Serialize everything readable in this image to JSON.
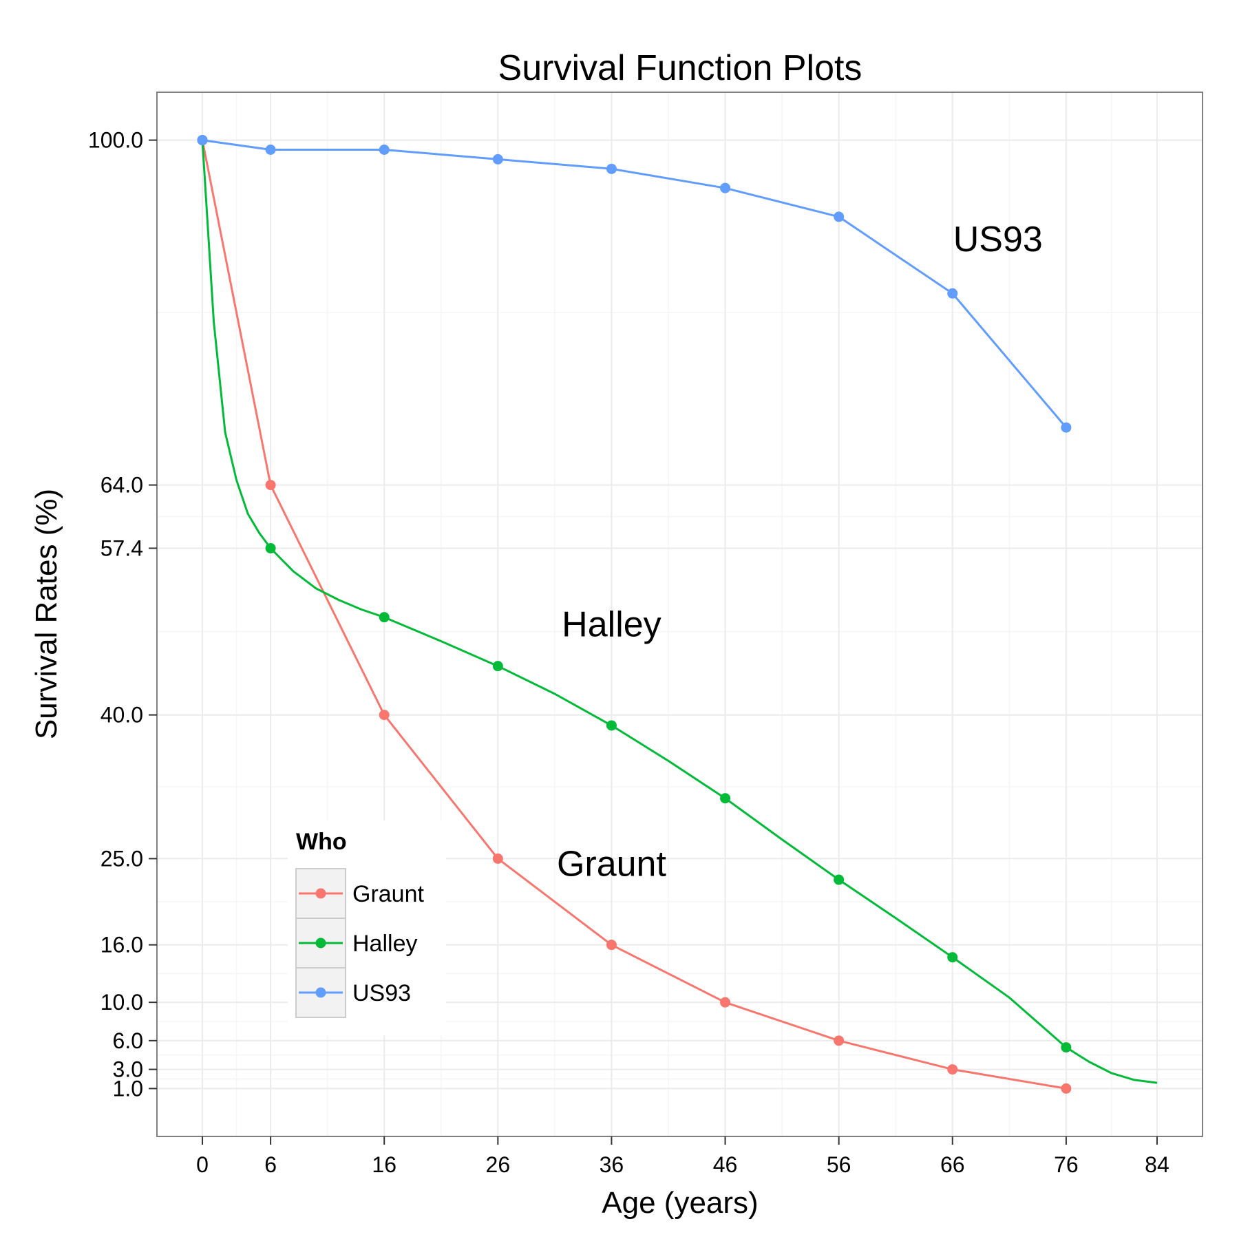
{
  "chart_data": {
    "type": "line",
    "title": "Survival Function Plots",
    "xlabel": "Age (years)",
    "ylabel": "Survival Rates (%)",
    "xlim": [
      -4,
      88
    ],
    "ylim": [
      -4,
      105
    ],
    "x_ticks": [
      0,
      6,
      16,
      26,
      36,
      46,
      56,
      66,
      76,
      84
    ],
    "y_ticks": [
      1,
      3,
      6,
      10,
      16,
      25,
      40,
      57.4,
      64,
      100
    ],
    "y_tick_labels": [
      "1.0",
      "3.0",
      "6.0",
      "10.0",
      "16.0",
      "25.0",
      "40.0",
      "57.4",
      "64.0",
      "100.0"
    ],
    "grid": true,
    "legend": {
      "title": "Who",
      "position": "bottom-left",
      "entries": [
        "Graunt",
        "Halley",
        "US93"
      ]
    },
    "series": [
      {
        "name": "Graunt",
        "color": "#F8766D",
        "points": [
          {
            "x": 0,
            "y": 100
          },
          {
            "x": 6,
            "y": 64
          },
          {
            "x": 16,
            "y": 40
          },
          {
            "x": 26,
            "y": 25
          },
          {
            "x": 36,
            "y": 16
          },
          {
            "x": 46,
            "y": 10
          },
          {
            "x": 56,
            "y": 6
          },
          {
            "x": 66,
            "y": 3
          },
          {
            "x": 76,
            "y": 1
          }
        ],
        "curve": [
          {
            "x": 0,
            "y": 100
          },
          {
            "x": 6,
            "y": 64
          },
          {
            "x": 16,
            "y": 40
          },
          {
            "x": 26,
            "y": 25
          },
          {
            "x": 36,
            "y": 16
          },
          {
            "x": 46,
            "y": 10
          },
          {
            "x": 56,
            "y": 6
          },
          {
            "x": 66,
            "y": 3
          },
          {
            "x": 76,
            "y": 1
          }
        ]
      },
      {
        "name": "Halley",
        "color": "#00BA38",
        "points": [
          {
            "x": 0,
            "y": 100
          },
          {
            "x": 6,
            "y": 57.4
          },
          {
            "x": 16,
            "y": 50.2
          },
          {
            "x": 26,
            "y": 45.1
          },
          {
            "x": 36,
            "y": 38.9
          },
          {
            "x": 46,
            "y": 31.3
          },
          {
            "x": 56,
            "y": 22.8
          },
          {
            "x": 66,
            "y": 14.7
          },
          {
            "x": 76,
            "y": 5.3
          }
        ],
        "curve": [
          {
            "x": 0,
            "y": 100
          },
          {
            "x": 1,
            "y": 81
          },
          {
            "x": 2,
            "y": 69.5
          },
          {
            "x": 3,
            "y": 64.5
          },
          {
            "x": 4,
            "y": 61
          },
          {
            "x": 5,
            "y": 59
          },
          {
            "x": 6,
            "y": 57.4
          },
          {
            "x": 8,
            "y": 55
          },
          {
            "x": 10,
            "y": 53.2
          },
          {
            "x": 12,
            "y": 52
          },
          {
            "x": 14,
            "y": 51
          },
          {
            "x": 16,
            "y": 50.2
          },
          {
            "x": 21,
            "y": 47.7
          },
          {
            "x": 26,
            "y": 45.1
          },
          {
            "x": 31,
            "y": 42.2
          },
          {
            "x": 36,
            "y": 38.9
          },
          {
            "x": 41,
            "y": 35.2
          },
          {
            "x": 46,
            "y": 31.3
          },
          {
            "x": 51,
            "y": 27
          },
          {
            "x": 56,
            "y": 22.8
          },
          {
            "x": 61,
            "y": 18.8
          },
          {
            "x": 66,
            "y": 14.7
          },
          {
            "x": 71,
            "y": 10.5
          },
          {
            "x": 76,
            "y": 5.3
          },
          {
            "x": 78,
            "y": 3.8
          },
          {
            "x": 80,
            "y": 2.6
          },
          {
            "x": 82,
            "y": 1.9
          },
          {
            "x": 84,
            "y": 1.6
          }
        ]
      },
      {
        "name": "US93",
        "color": "#619CFF",
        "points": [
          {
            "x": 0,
            "y": 100
          },
          {
            "x": 6,
            "y": 99
          },
          {
            "x": 16,
            "y": 99
          },
          {
            "x": 26,
            "y": 98
          },
          {
            "x": 36,
            "y": 97
          },
          {
            "x": 46,
            "y": 95
          },
          {
            "x": 56,
            "y": 92
          },
          {
            "x": 66,
            "y": 84
          },
          {
            "x": 76,
            "y": 70
          }
        ],
        "curve": [
          {
            "x": 0,
            "y": 100
          },
          {
            "x": 6,
            "y": 99
          },
          {
            "x": 16,
            "y": 99
          },
          {
            "x": 26,
            "y": 98
          },
          {
            "x": 36,
            "y": 97
          },
          {
            "x": 46,
            "y": 95
          },
          {
            "x": 56,
            "y": 92
          },
          {
            "x": 66,
            "y": 84
          },
          {
            "x": 76,
            "y": 70
          }
        ]
      }
    ],
    "annotations": [
      {
        "text": "US93",
        "x": 70,
        "y": 89.7
      },
      {
        "text": "Halley",
        "x": 36,
        "y": 49.5
      },
      {
        "text": "Graunt",
        "x": 36,
        "y": 24.5
      }
    ]
  }
}
